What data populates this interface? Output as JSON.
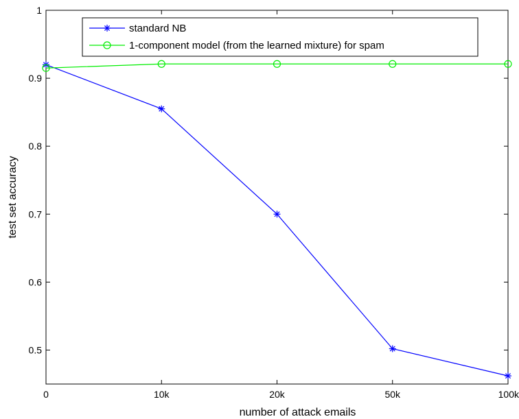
{
  "chart_data": {
    "type": "line",
    "title": "",
    "xlabel": "number of attack emails",
    "ylabel": "test set accuracy",
    "categories": [
      "0",
      "10k",
      "20k",
      "50k",
      "100k"
    ],
    "ylim": [
      0.45,
      1
    ],
    "yticks": [
      "0.5",
      "0.6",
      "0.7",
      "0.8",
      "0.9",
      "1"
    ],
    "grid": false,
    "legend_position": "top-center",
    "series": [
      {
        "name": "standard NB",
        "color": "#0000ff",
        "marker": "asterisk",
        "values": [
          0.92,
          0.855,
          0.7,
          0.502,
          0.462
        ]
      },
      {
        "name": "1-component model (from the learned mixture) for spam",
        "color": "#00ee00",
        "marker": "circle",
        "values": [
          0.915,
          0.921,
          0.921,
          0.921,
          0.921
        ]
      }
    ]
  }
}
